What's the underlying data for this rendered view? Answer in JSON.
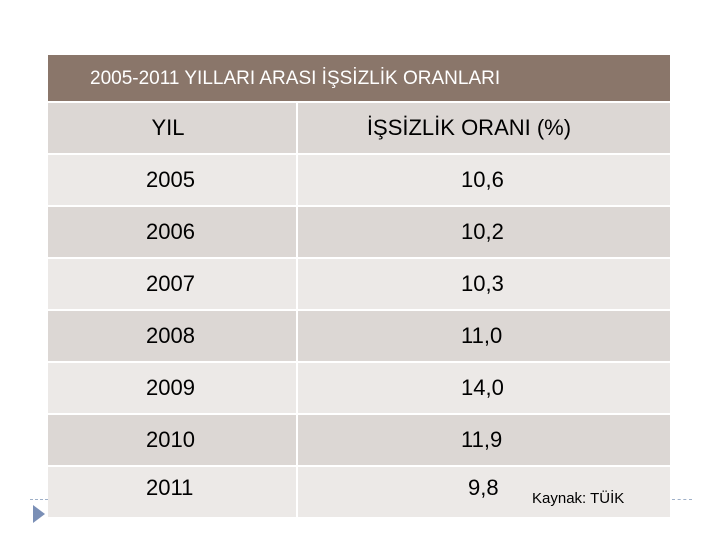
{
  "title": "2005-2011 YILLARI ARASI İŞSİZLİK ORANLARI",
  "columns": [
    "YIL",
    "İŞSİZLİK ORANI (%)"
  ],
  "rows": [
    {
      "year": "2005",
      "rate": "10,6"
    },
    {
      "year": "2006",
      "rate": "10,2"
    },
    {
      "year": "2007",
      "rate": "10,3"
    },
    {
      "year": "2008",
      "rate": "11,0"
    },
    {
      "year": "2009",
      "rate": "14,0"
    },
    {
      "year": "2010",
      "rate": "11,9"
    },
    {
      "year": "2011",
      "rate": "9,8"
    }
  ],
  "source": "Kaynak: TÜİK",
  "colors": {
    "header": "#8a766a",
    "row_light": "#ece9e7",
    "row_dark": "#dcd7d4",
    "accent": "#7a8fb6"
  }
}
